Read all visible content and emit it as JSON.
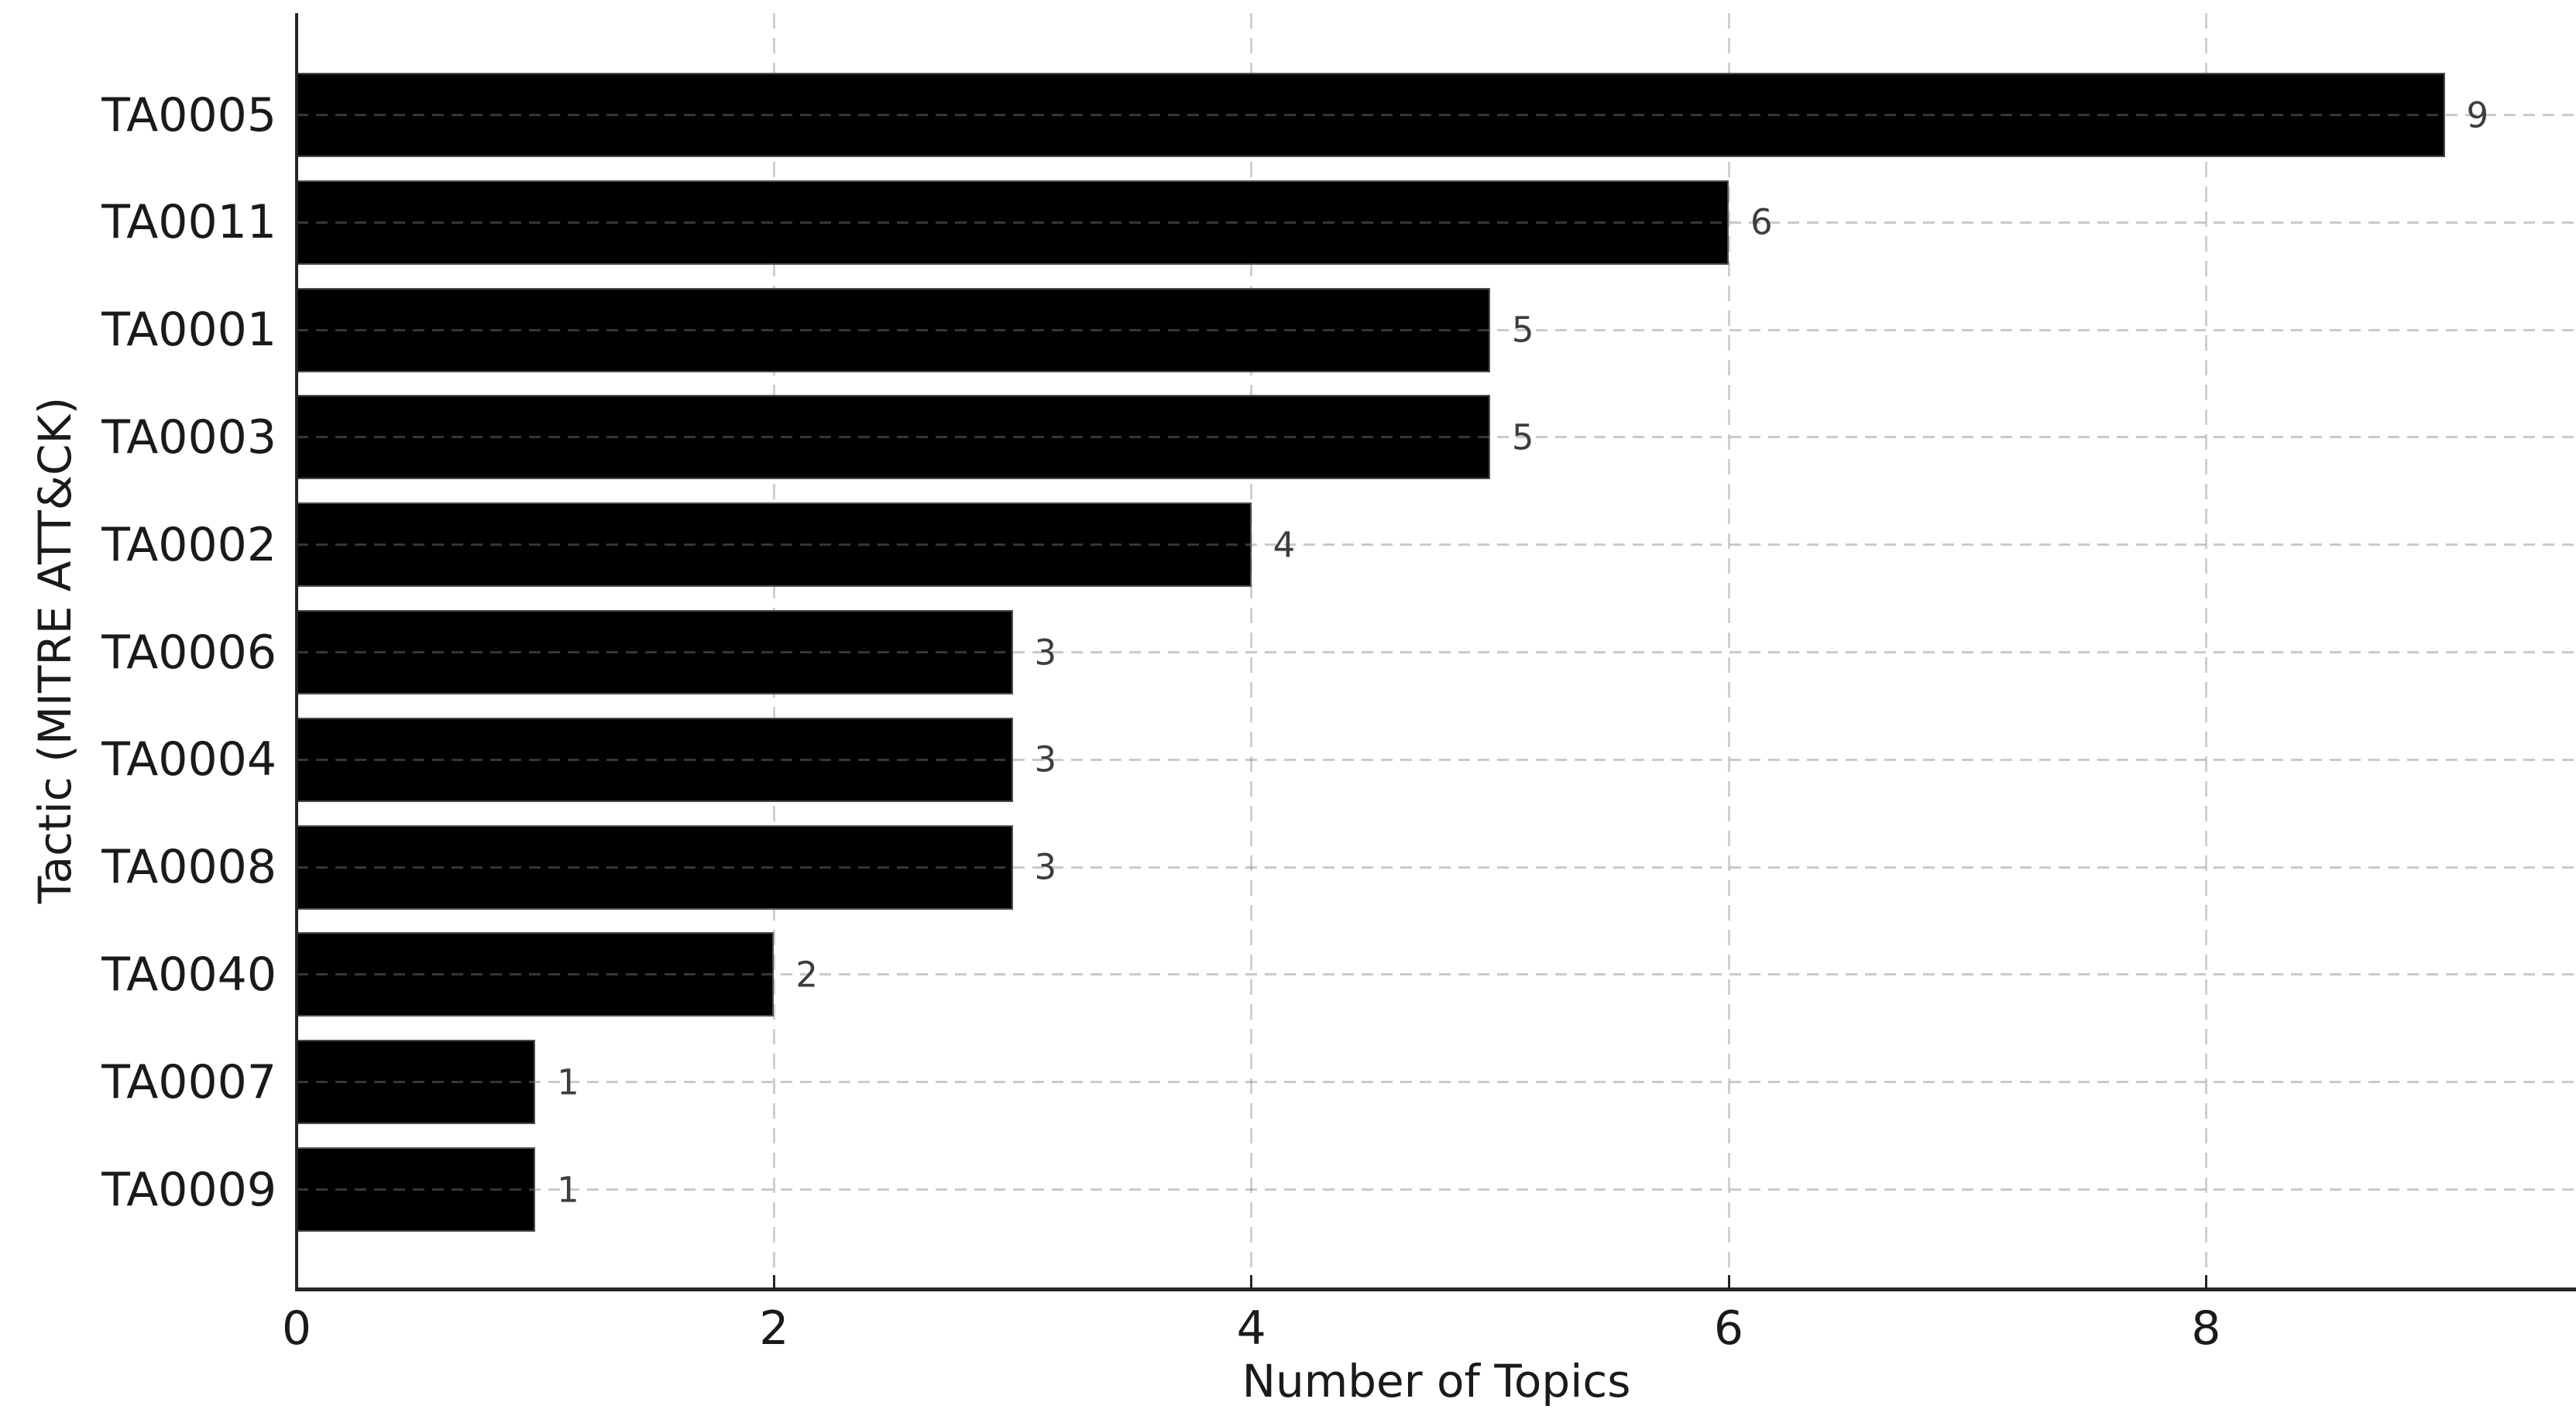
{
  "chart_data": {
    "type": "bar",
    "orientation": "horizontal",
    "title": "",
    "xlabel": "Number of Topics",
    "ylabel": "Tactic (MITRE ATT&CK)",
    "categories": [
      "TA0005",
      "TA0011",
      "TA0001",
      "TA0003",
      "TA0002",
      "TA0006",
      "TA0004",
      "TA0008",
      "TA0040",
      "TA0007",
      "TA0009"
    ],
    "values": [
      9,
      6,
      5,
      5,
      4,
      3,
      3,
      3,
      2,
      1,
      1
    ],
    "x_ticks": [
      0,
      2,
      4,
      6,
      8
    ],
    "xlim": [
      0,
      9.55
    ],
    "grid": true,
    "grid_style": "dashed",
    "legend": null,
    "styles": {
      "background": "#ffffff",
      "bar_color": "#000000",
      "bar_edge_color": "#4d4d4d",
      "spine_color": "#262626",
      "axis_text_color": "#1a1a1a",
      "value_label_color": "#3d3d3d",
      "hgrid_color": "rgba(128,128,128,0.42)",
      "vgrid_color": "#cfcfcf"
    }
  }
}
